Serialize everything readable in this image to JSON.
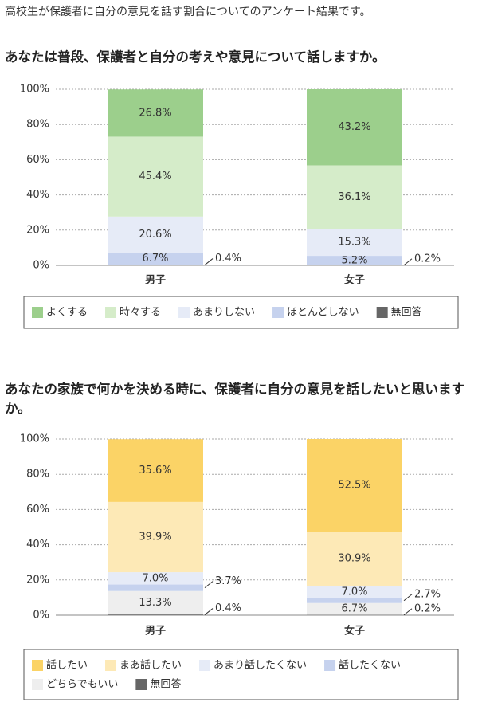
{
  "header": "高校生が保護者に自分の意見を話す割合についてのアンケート結果です。",
  "chart_data": [
    {
      "type": "stacked-bar",
      "title": "あなたは普段、保護者と自分の考えや意見について話しますか。",
      "categories": [
        "男子",
        "女子"
      ],
      "category_colors": [
        "#3a8fd0",
        "#e0403a"
      ],
      "series": [
        {
          "name": "よくする",
          "color": "#9ccf8c",
          "values": [
            26.8,
            43.2
          ],
          "value_labels": [
            "26.8%",
            "43.2%"
          ]
        },
        {
          "name": "時々する",
          "color": "#d5ecc9",
          "values": [
            45.4,
            36.1
          ],
          "value_labels": [
            "45.4%",
            "36.1%"
          ]
        },
        {
          "name": "あまりしない",
          "color": "#e6ebf7",
          "values": [
            20.6,
            15.3
          ],
          "value_labels": [
            "20.6%",
            "15.3%"
          ]
        },
        {
          "name": "ほとんどしない",
          "color": "#c6d2ee",
          "values": [
            6.7,
            5.2
          ],
          "value_labels": [
            "6.7%",
            "5.2%"
          ]
        },
        {
          "name": "無回答",
          "color": "#666666",
          "values": [
            0.4,
            0.2
          ],
          "value_labels": [
            "0.4%",
            "0.2%"
          ]
        }
      ],
      "ylim": [
        0,
        100
      ],
      "yticks": [
        {
          "value": 0,
          "label": "0%"
        },
        {
          "value": 20,
          "label": "20%"
        },
        {
          "value": 40,
          "label": "40%"
        },
        {
          "value": 60,
          "label": "60%"
        },
        {
          "value": 80,
          "label": "80%"
        },
        {
          "value": 100,
          "label": "100%"
        }
      ],
      "grid": true
    },
    {
      "type": "stacked-bar",
      "title": "あなたの家族で何かを決める時に、保護者に自分の意見を話したいと思いますか。",
      "categories": [
        "男子",
        "女子"
      ],
      "category_colors": [
        "#3a8fd0",
        "#e0403a"
      ],
      "series": [
        {
          "name": "話したい",
          "color": "#fbd366",
          "values": [
            35.6,
            52.5
          ],
          "value_labels": [
            "35.6%",
            "52.5%"
          ]
        },
        {
          "name": "まあ話したい",
          "color": "#fde9b6",
          "values": [
            39.9,
            30.9
          ],
          "value_labels": [
            "39.9%",
            "30.9%"
          ]
        },
        {
          "name": "あまり話したくない",
          "color": "#e6ebf7",
          "values": [
            7.0,
            7.0
          ],
          "value_labels": [
            "7.0%",
            "7.0%"
          ]
        },
        {
          "name": "話したくない",
          "color": "#c6d2ee",
          "values": [
            3.7,
            2.7
          ],
          "value_labels": [
            "3.7%",
            "2.7%"
          ]
        },
        {
          "name": "どちらでもいい",
          "color": "#eeeeee",
          "values": [
            13.3,
            6.7
          ],
          "value_labels": [
            "13.3%",
            "6.7%"
          ]
        },
        {
          "name": "無回答",
          "color": "#666666",
          "values": [
            0.4,
            0.2
          ],
          "value_labels": [
            "0.4%",
            "0.2%"
          ]
        }
      ],
      "ylim": [
        0,
        100
      ],
      "yticks": [
        {
          "value": 0,
          "label": "0%"
        },
        {
          "value": 20,
          "label": "20%"
        },
        {
          "value": 40,
          "label": "40%"
        },
        {
          "value": 60,
          "label": "60%"
        },
        {
          "value": 80,
          "label": "80%"
        },
        {
          "value": 100,
          "label": "100%"
        }
      ],
      "grid": true
    }
  ]
}
